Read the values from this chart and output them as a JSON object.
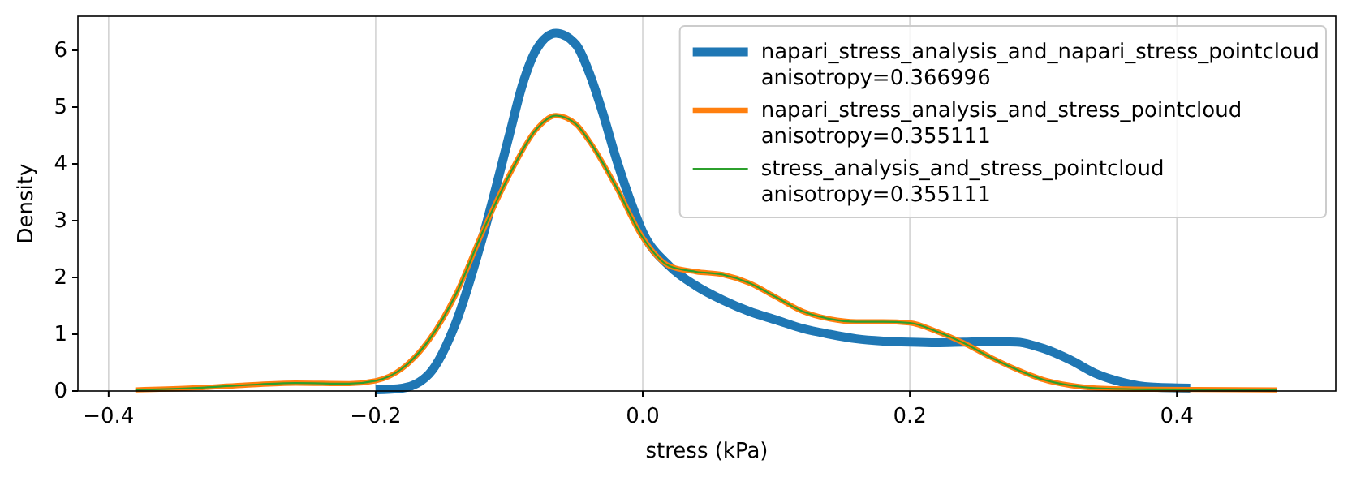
{
  "chart_data": {
    "type": "line",
    "xlabel": "stress (kPa)",
    "ylabel": "Density",
    "xlim": [
      -0.423,
      0.519
    ],
    "ylim": [
      0,
      6.6
    ],
    "xticks": [
      {
        "value": -0.4,
        "label": "−0.4"
      },
      {
        "value": -0.2,
        "label": "−0.2"
      },
      {
        "value": 0,
        "label": "0.0"
      },
      {
        "value": 0.2,
        "label": "0.2"
      },
      {
        "value": 0.4,
        "label": "0.4"
      }
    ],
    "yticks": [
      0,
      1,
      2,
      3,
      4,
      5,
      6
    ],
    "grid": "x",
    "legend": "top right",
    "line_style": "solid",
    "marker": "none",
    "series": [
      {
        "name": "napari_stress_analysis_and_napari_stress_pointcloud\nanisotropy=0.366996",
        "color": "#1f77b4",
        "x": [
          -0.2,
          -0.18,
          -0.16,
          -0.14,
          -0.12,
          -0.1,
          -0.09,
          -0.08,
          -0.065,
          -0.05,
          -0.04,
          -0.03,
          -0.02,
          -0.01,
          0,
          0.02,
          0.04,
          0.06,
          0.08,
          0.1,
          0.12,
          0.14,
          0.16,
          0.18,
          0.2,
          0.22,
          0.24,
          0.26,
          0.28,
          0.3,
          0.32,
          0.34,
          0.36,
          0.38,
          0.41
        ],
        "values": [
          0.02,
          0.05,
          0.3,
          1.2,
          2.7,
          4.5,
          5.4,
          6.0,
          6.3,
          6.1,
          5.6,
          4.9,
          4.1,
          3.4,
          2.8,
          2.2,
          1.85,
          1.6,
          1.4,
          1.25,
          1.1,
          1.0,
          0.92,
          0.88,
          0.86,
          0.85,
          0.86,
          0.87,
          0.86,
          0.75,
          0.55,
          0.3,
          0.15,
          0.07,
          0.05
        ]
      },
      {
        "name": "napari_stress_analysis_and_stress_pointcloud\nanisotropy=0.355111",
        "color": "#ff7f0e",
        "x": [
          -0.38,
          -0.34,
          -0.3,
          -0.26,
          -0.22,
          -0.2,
          -0.18,
          -0.16,
          -0.14,
          -0.12,
          -0.1,
          -0.08,
          -0.065,
          -0.05,
          -0.04,
          -0.02,
          0,
          0.02,
          0.04,
          0.06,
          0.08,
          0.1,
          0.12,
          0.14,
          0.16,
          0.18,
          0.2,
          0.22,
          0.24,
          0.26,
          0.28,
          0.3,
          0.32,
          0.34,
          0.38,
          0.475
        ],
        "values": [
          0.02,
          0.05,
          0.1,
          0.14,
          0.13,
          0.18,
          0.4,
          0.9,
          1.7,
          2.8,
          3.8,
          4.6,
          4.85,
          4.7,
          4.4,
          3.6,
          2.7,
          2.2,
          2.1,
          2.05,
          1.9,
          1.65,
          1.4,
          1.27,
          1.22,
          1.22,
          1.2,
          1.05,
          0.85,
          0.6,
          0.38,
          0.2,
          0.1,
          0.05,
          0.03,
          0.02
        ]
      },
      {
        "name": "stress_analysis_and_stress_pointcloud\nanisotropy=0.355111",
        "color": "#2ca02c",
        "x": [
          -0.38,
          -0.34,
          -0.3,
          -0.26,
          -0.22,
          -0.2,
          -0.18,
          -0.16,
          -0.14,
          -0.12,
          -0.1,
          -0.08,
          -0.065,
          -0.05,
          -0.04,
          -0.02,
          0,
          0.02,
          0.04,
          0.06,
          0.08,
          0.1,
          0.12,
          0.14,
          0.16,
          0.18,
          0.2,
          0.22,
          0.24,
          0.26,
          0.28,
          0.3,
          0.32,
          0.34,
          0.38,
          0.475
        ],
        "values": [
          0.02,
          0.05,
          0.1,
          0.14,
          0.13,
          0.18,
          0.4,
          0.9,
          1.7,
          2.8,
          3.8,
          4.6,
          4.85,
          4.7,
          4.4,
          3.6,
          2.7,
          2.2,
          2.1,
          2.05,
          1.9,
          1.65,
          1.4,
          1.27,
          1.22,
          1.22,
          1.2,
          1.05,
          0.85,
          0.6,
          0.38,
          0.2,
          0.1,
          0.05,
          0.03,
          0.02
        ]
      }
    ]
  }
}
